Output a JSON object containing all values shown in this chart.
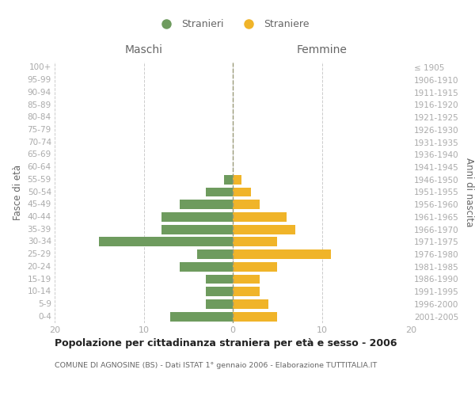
{
  "age_groups_bottom_to_top": [
    "0-4",
    "5-9",
    "10-14",
    "15-19",
    "20-24",
    "25-29",
    "30-34",
    "35-39",
    "40-44",
    "45-49",
    "50-54",
    "55-59",
    "60-64",
    "65-69",
    "70-74",
    "75-79",
    "80-84",
    "85-89",
    "90-94",
    "95-99",
    "100+"
  ],
  "birth_years_bottom_to_top": [
    "2001-2005",
    "1996-2000",
    "1991-1995",
    "1986-1990",
    "1981-1985",
    "1976-1980",
    "1971-1975",
    "1966-1970",
    "1961-1965",
    "1956-1960",
    "1951-1955",
    "1946-1950",
    "1941-1945",
    "1936-1940",
    "1931-1935",
    "1926-1930",
    "1921-1925",
    "1916-1920",
    "1911-1915",
    "1906-1910",
    "≤ 1905"
  ],
  "males_bottom_to_top": [
    7,
    3,
    3,
    3,
    6,
    4,
    15,
    8,
    8,
    6,
    3,
    1,
    0,
    0,
    0,
    0,
    0,
    0,
    0,
    0,
    0
  ],
  "females_bottom_to_top": [
    5,
    4,
    3,
    3,
    5,
    11,
    5,
    7,
    6,
    3,
    2,
    1,
    0,
    0,
    0,
    0,
    0,
    0,
    0,
    0,
    0
  ],
  "male_color": "#6e9b5e",
  "female_color": "#f0b429",
  "title_main": "Popolazione per cittadinanza straniera per età e sesso - 2006",
  "title_sub": "COMUNE DI AGNOSINE (BS) - Dati ISTAT 1° gennaio 2006 - Elaborazione TUTTITALIA.IT",
  "legend_male": "Stranieri",
  "legend_female": "Straniere",
  "label_maschi": "Maschi",
  "label_femmine": "Femmine",
  "ylabel_left": "Fasce di età",
  "ylabel_right": "Anni di nascita",
  "xlim": 20,
  "background_color": "#ffffff",
  "grid_color": "#cccccc",
  "text_color": "#aaaaaa",
  "axis_label_color": "#666666",
  "centerline_color": "#999977",
  "title_color": "#222222",
  "subtitle_color": "#666666"
}
